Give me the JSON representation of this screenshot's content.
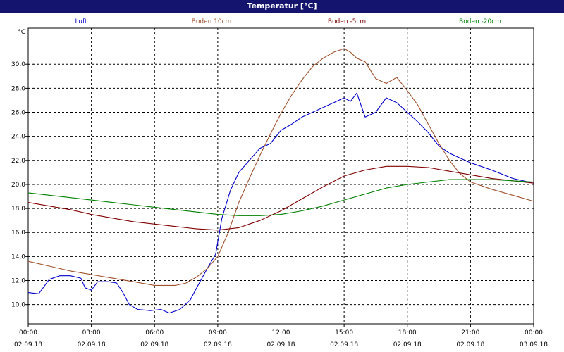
{
  "window": {
    "title": "Temperatur [°C]"
  },
  "chart_data": {
    "type": "line",
    "title": "Temperatur [°C]",
    "yunit": "°C",
    "ylim": [
      8.4,
      33.0
    ],
    "xlim": [
      0,
      24
    ],
    "grid": true,
    "yticks": [
      10,
      12,
      14,
      16,
      18,
      20,
      22,
      24,
      26,
      28,
      30
    ],
    "ytick_labels": [
      "10,0",
      "12,0",
      "14,0",
      "16,0",
      "18,0",
      "20,0",
      "22,0",
      "24,0",
      "26,0",
      "28,0",
      "30,0"
    ],
    "xticks": [
      0,
      3,
      6,
      9,
      12,
      15,
      18,
      21,
      24
    ],
    "xtick_labels": [
      [
        "00:00",
        "02.09.18"
      ],
      [
        "03:00",
        "02.09.18"
      ],
      [
        "06:00",
        "02.09.18"
      ],
      [
        "09:00",
        "02.09.18"
      ],
      [
        "12:00",
        "02.09.18"
      ],
      [
        "15:00",
        "02.09.18"
      ],
      [
        "18:00",
        "02.09.18"
      ],
      [
        "21:00",
        "02.09.18"
      ],
      [
        "00:00",
        "03.09.18"
      ]
    ],
    "legend_position": "top",
    "series": [
      {
        "name": "Luft",
        "color": "#0000cc",
        "points": [
          [
            0,
            11.0
          ],
          [
            0.5,
            10.9
          ],
          [
            1,
            12.1
          ],
          [
            1.5,
            12.4
          ],
          [
            2,
            12.4
          ],
          [
            2.5,
            12.2
          ],
          [
            2.7,
            11.4
          ],
          [
            3,
            11.2
          ],
          [
            3.3,
            11.9
          ],
          [
            3.8,
            11.9
          ],
          [
            4.2,
            11.8
          ],
          [
            4.5,
            11.0
          ],
          [
            4.8,
            10.0
          ],
          [
            5.2,
            9.6
          ],
          [
            5.8,
            9.5
          ],
          [
            6.3,
            9.6
          ],
          [
            6.7,
            9.3
          ],
          [
            7.2,
            9.6
          ],
          [
            7.7,
            10.4
          ],
          [
            8.0,
            11.4
          ],
          [
            8.5,
            13.0
          ],
          [
            8.9,
            14.2
          ],
          [
            9.2,
            17.2
          ],
          [
            9.6,
            19.5
          ],
          [
            10.0,
            21.0
          ],
          [
            10.5,
            22.0
          ],
          [
            11.0,
            23.0
          ],
          [
            11.5,
            23.4
          ],
          [
            12.0,
            24.5
          ],
          [
            12.5,
            25.0
          ],
          [
            13.0,
            25.6
          ],
          [
            13.5,
            26.0
          ],
          [
            14.0,
            26.4
          ],
          [
            14.5,
            26.8
          ],
          [
            15.0,
            27.2
          ],
          [
            15.3,
            26.9
          ],
          [
            15.6,
            27.6
          ],
          [
            16.0,
            25.6
          ],
          [
            16.5,
            26.0
          ],
          [
            17.0,
            27.2
          ],
          [
            17.5,
            26.8
          ],
          [
            18.0,
            26.0
          ],
          [
            18.5,
            25.2
          ],
          [
            19.0,
            24.3
          ],
          [
            19.5,
            23.2
          ],
          [
            20.0,
            22.6
          ],
          [
            20.5,
            22.2
          ],
          [
            21.0,
            21.8
          ],
          [
            22.0,
            21.2
          ],
          [
            23.0,
            20.5
          ],
          [
            24.0,
            20.1
          ]
        ]
      },
      {
        "name": "Boden 10cm",
        "color": "#a0522d",
        "points": [
          [
            0,
            13.6
          ],
          [
            1,
            13.2
          ],
          [
            2,
            12.8
          ],
          [
            3,
            12.5
          ],
          [
            4,
            12.2
          ],
          [
            5,
            11.9
          ],
          [
            6,
            11.6
          ],
          [
            7,
            11.6
          ],
          [
            7.5,
            11.8
          ],
          [
            8,
            12.3
          ],
          [
            8.5,
            13.0
          ],
          [
            9.0,
            14.0
          ],
          [
            9.5,
            16.0
          ],
          [
            10.0,
            18.5
          ],
          [
            10.5,
            20.5
          ],
          [
            11.0,
            22.4
          ],
          [
            11.5,
            24.2
          ],
          [
            12.0,
            25.9
          ],
          [
            12.5,
            27.4
          ],
          [
            13.0,
            28.7
          ],
          [
            13.5,
            29.8
          ],
          [
            14.0,
            30.5
          ],
          [
            14.5,
            31.0
          ],
          [
            15.0,
            31.3
          ],
          [
            15.3,
            31.0
          ],
          [
            15.6,
            30.5
          ],
          [
            16.0,
            30.2
          ],
          [
            16.5,
            28.8
          ],
          [
            17.0,
            28.4
          ],
          [
            17.5,
            28.9
          ],
          [
            18.0,
            27.8
          ],
          [
            18.5,
            26.6
          ],
          [
            19.0,
            25.0
          ],
          [
            19.5,
            23.4
          ],
          [
            20.0,
            22.0
          ],
          [
            20.5,
            20.9
          ],
          [
            21.0,
            20.2
          ],
          [
            22.0,
            19.6
          ],
          [
            23.0,
            19.1
          ],
          [
            24.0,
            18.6
          ]
        ]
      },
      {
        "name": "Boden -5cm",
        "color": "#800000",
        "points": [
          [
            0,
            18.5
          ],
          [
            1,
            18.2
          ],
          [
            2,
            17.9
          ],
          [
            3,
            17.5
          ],
          [
            4,
            17.2
          ],
          [
            5,
            16.9
          ],
          [
            6,
            16.7
          ],
          [
            7,
            16.5
          ],
          [
            8,
            16.3
          ],
          [
            9,
            16.2
          ],
          [
            10,
            16.4
          ],
          [
            11,
            17.0
          ],
          [
            12,
            17.8
          ],
          [
            13,
            18.8
          ],
          [
            14,
            19.8
          ],
          [
            15,
            20.7
          ],
          [
            16,
            21.2
          ],
          [
            17,
            21.5
          ],
          [
            18,
            21.5
          ],
          [
            19,
            21.4
          ],
          [
            20,
            21.1
          ],
          [
            21,
            20.8
          ],
          [
            22,
            20.5
          ],
          [
            23,
            20.3
          ],
          [
            24,
            20.1
          ]
        ]
      },
      {
        "name": "Boden -20cm",
        "color": "#008000",
        "points": [
          [
            0,
            19.3
          ],
          [
            1,
            19.1
          ],
          [
            2,
            18.9
          ],
          [
            3,
            18.7
          ],
          [
            4,
            18.5
          ],
          [
            5,
            18.3
          ],
          [
            6,
            18.1
          ],
          [
            7,
            17.9
          ],
          [
            8,
            17.7
          ],
          [
            9,
            17.5
          ],
          [
            10,
            17.4
          ],
          [
            11,
            17.4
          ],
          [
            12,
            17.5
          ],
          [
            13,
            17.8
          ],
          [
            14,
            18.2
          ],
          [
            15,
            18.7
          ],
          [
            16,
            19.2
          ],
          [
            17,
            19.7
          ],
          [
            18,
            20.0
          ],
          [
            19,
            20.2
          ],
          [
            20,
            20.4
          ],
          [
            21,
            20.4
          ],
          [
            22,
            20.4
          ],
          [
            23,
            20.3
          ],
          [
            24,
            20.2
          ]
        ]
      }
    ]
  }
}
